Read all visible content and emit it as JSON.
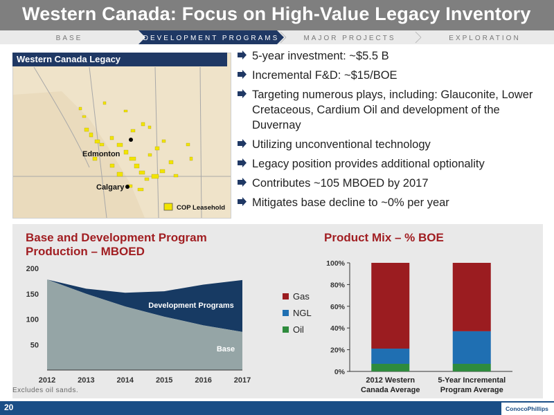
{
  "slide": {
    "title": "Western Canada: Focus on High-Value Legacy Inventory",
    "page_number": "20",
    "logo_text": "ConocoPhillips",
    "footnote": "Excludes oil sands."
  },
  "nav": {
    "tabs": [
      {
        "label": "BASE",
        "active": false
      },
      {
        "label": "DEVELOPMENT PROGRAMS",
        "active": true
      },
      {
        "label": "MAJOR PROJECTS",
        "active": false
      },
      {
        "label": "EXPLORATION",
        "active": false
      }
    ]
  },
  "map": {
    "header": "Western Canada Legacy",
    "cities": [
      "Edmonton",
      "Calgary"
    ],
    "legend": "COP Leasehold",
    "colors": {
      "land": "#efe3c9",
      "leasehold": "#f2e400",
      "header": "#1f3864"
    }
  },
  "bullets": [
    "5-year investment: ~$5.5 B",
    "Incremental F&D: ~$15/BOE",
    "Targeting numerous plays, including: Glauconite, Lower Cretaceous, Cardium Oil and development of the Duvernay",
    "Utilizing unconventional technology",
    "Legacy position provides additional optionality",
    "Contributes ~105 MBOED by 2017",
    "Mitigates base decline to ~0% per year"
  ],
  "chart_data": [
    {
      "type": "area",
      "title": "Base and Development Program Production – MBOED",
      "x": [
        2012,
        2013,
        2014,
        2015,
        2016,
        2017
      ],
      "x_tick_labels": [
        "2012",
        "2013",
        "2014",
        "2015",
        "2016",
        "2017"
      ],
      "ylim": [
        0,
        200
      ],
      "y_ticks": [
        50,
        100,
        150,
        200
      ],
      "series": [
        {
          "name": "Base",
          "values": [
            178,
            150,
            125,
            105,
            88,
            75
          ],
          "color": "#95a5a6"
        },
        {
          "name": "Development Programs",
          "values": [
            0,
            10,
            27,
            50,
            80,
            102
          ],
          "color": "#173a63"
        }
      ],
      "stacked": true,
      "grid": false
    },
    {
      "type": "bar",
      "stacked": true,
      "title": "Product Mix – % BOE",
      "categories": [
        "2012 Western Canada Average",
        "5-Year Incremental Program Average"
      ],
      "category_lines": [
        [
          "2012 Western",
          "Canada Average"
        ],
        [
          "5-Year Incremental",
          "Program Average"
        ]
      ],
      "ylim": [
        0,
        100
      ],
      "y_ticks": [
        "0%",
        "20%",
        "40%",
        "60%",
        "80%",
        "100%"
      ],
      "series": [
        {
          "name": "Oil",
          "values": [
            7,
            7
          ],
          "color": "#2e8b3d"
        },
        {
          "name": "NGL",
          "values": [
            14,
            30
          ],
          "color": "#1f6fb2"
        },
        {
          "name": "Gas",
          "values": [
            79,
            63
          ],
          "color": "#9b1c20"
        }
      ],
      "legend_order": [
        "Gas",
        "NGL",
        "Oil"
      ],
      "legend": "left"
    }
  ]
}
